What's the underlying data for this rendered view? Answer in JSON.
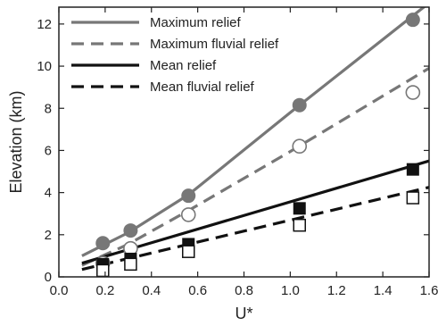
{
  "chart_data": {
    "type": "line",
    "xlabel": "U*",
    "ylabel": "Elevation (km)",
    "xlim": [
      0.0,
      1.6
    ],
    "ylim": [
      0,
      12.8
    ],
    "x_ticks": [
      "0.0",
      "0.2",
      "0.4",
      "0.6",
      "0.8",
      "1.0",
      "1.2",
      "1.4",
      "1.6"
    ],
    "y_ticks": [
      "0",
      "2",
      "4",
      "6",
      "8",
      "10",
      "12"
    ],
    "grid": false,
    "legend": "top-left",
    "series": [
      {
        "name": "Maximum relief",
        "color": "#777777",
        "line_style": "solid",
        "marker": "filled-circle",
        "points": [
          [
            0.19,
            1.6
          ],
          [
            0.31,
            2.2
          ],
          [
            0.56,
            3.85
          ],
          [
            1.04,
            8.15
          ],
          [
            1.53,
            12.2
          ]
        ],
        "fit": [
          [
            0.1,
            1.0
          ],
          [
            0.3,
            2.1
          ],
          [
            0.56,
            3.9
          ],
          [
            1.0,
            7.8
          ],
          [
            1.6,
            13.0
          ]
        ]
      },
      {
        "name": "Maximum fluvial relief",
        "color": "#777777",
        "line_style": "dashed",
        "marker": "open-circle",
        "points": [
          [
            0.19,
            0.65
          ],
          [
            0.31,
            1.35
          ],
          [
            0.56,
            2.95
          ],
          [
            1.04,
            6.2
          ],
          [
            1.53,
            8.75
          ]
        ],
        "fit": [
          [
            0.1,
            0.55
          ],
          [
            0.3,
            1.55
          ],
          [
            0.56,
            3.15
          ],
          [
            1.0,
            5.95
          ],
          [
            1.6,
            9.9
          ]
        ]
      },
      {
        "name": "Mean relief",
        "color": "#111111",
        "line_style": "solid",
        "marker": "filled-square",
        "points": [
          [
            0.19,
            0.6
          ],
          [
            0.31,
            0.85
          ],
          [
            0.56,
            1.55
          ],
          [
            1.04,
            3.25
          ],
          [
            1.53,
            5.1
          ]
        ],
        "fit": [
          [
            0.1,
            0.65
          ],
          [
            1.6,
            5.5
          ]
        ]
      },
      {
        "name": "Mean fluvial relief",
        "color": "#111111",
        "line_style": "dashed",
        "marker": "open-square",
        "points": [
          [
            0.19,
            0.3
          ],
          [
            0.31,
            0.6
          ],
          [
            0.56,
            1.2
          ],
          [
            1.04,
            2.45
          ],
          [
            1.53,
            3.75
          ]
        ],
        "fit": [
          [
            0.1,
            0.35
          ],
          [
            1.6,
            4.25
          ]
        ]
      }
    ]
  }
}
